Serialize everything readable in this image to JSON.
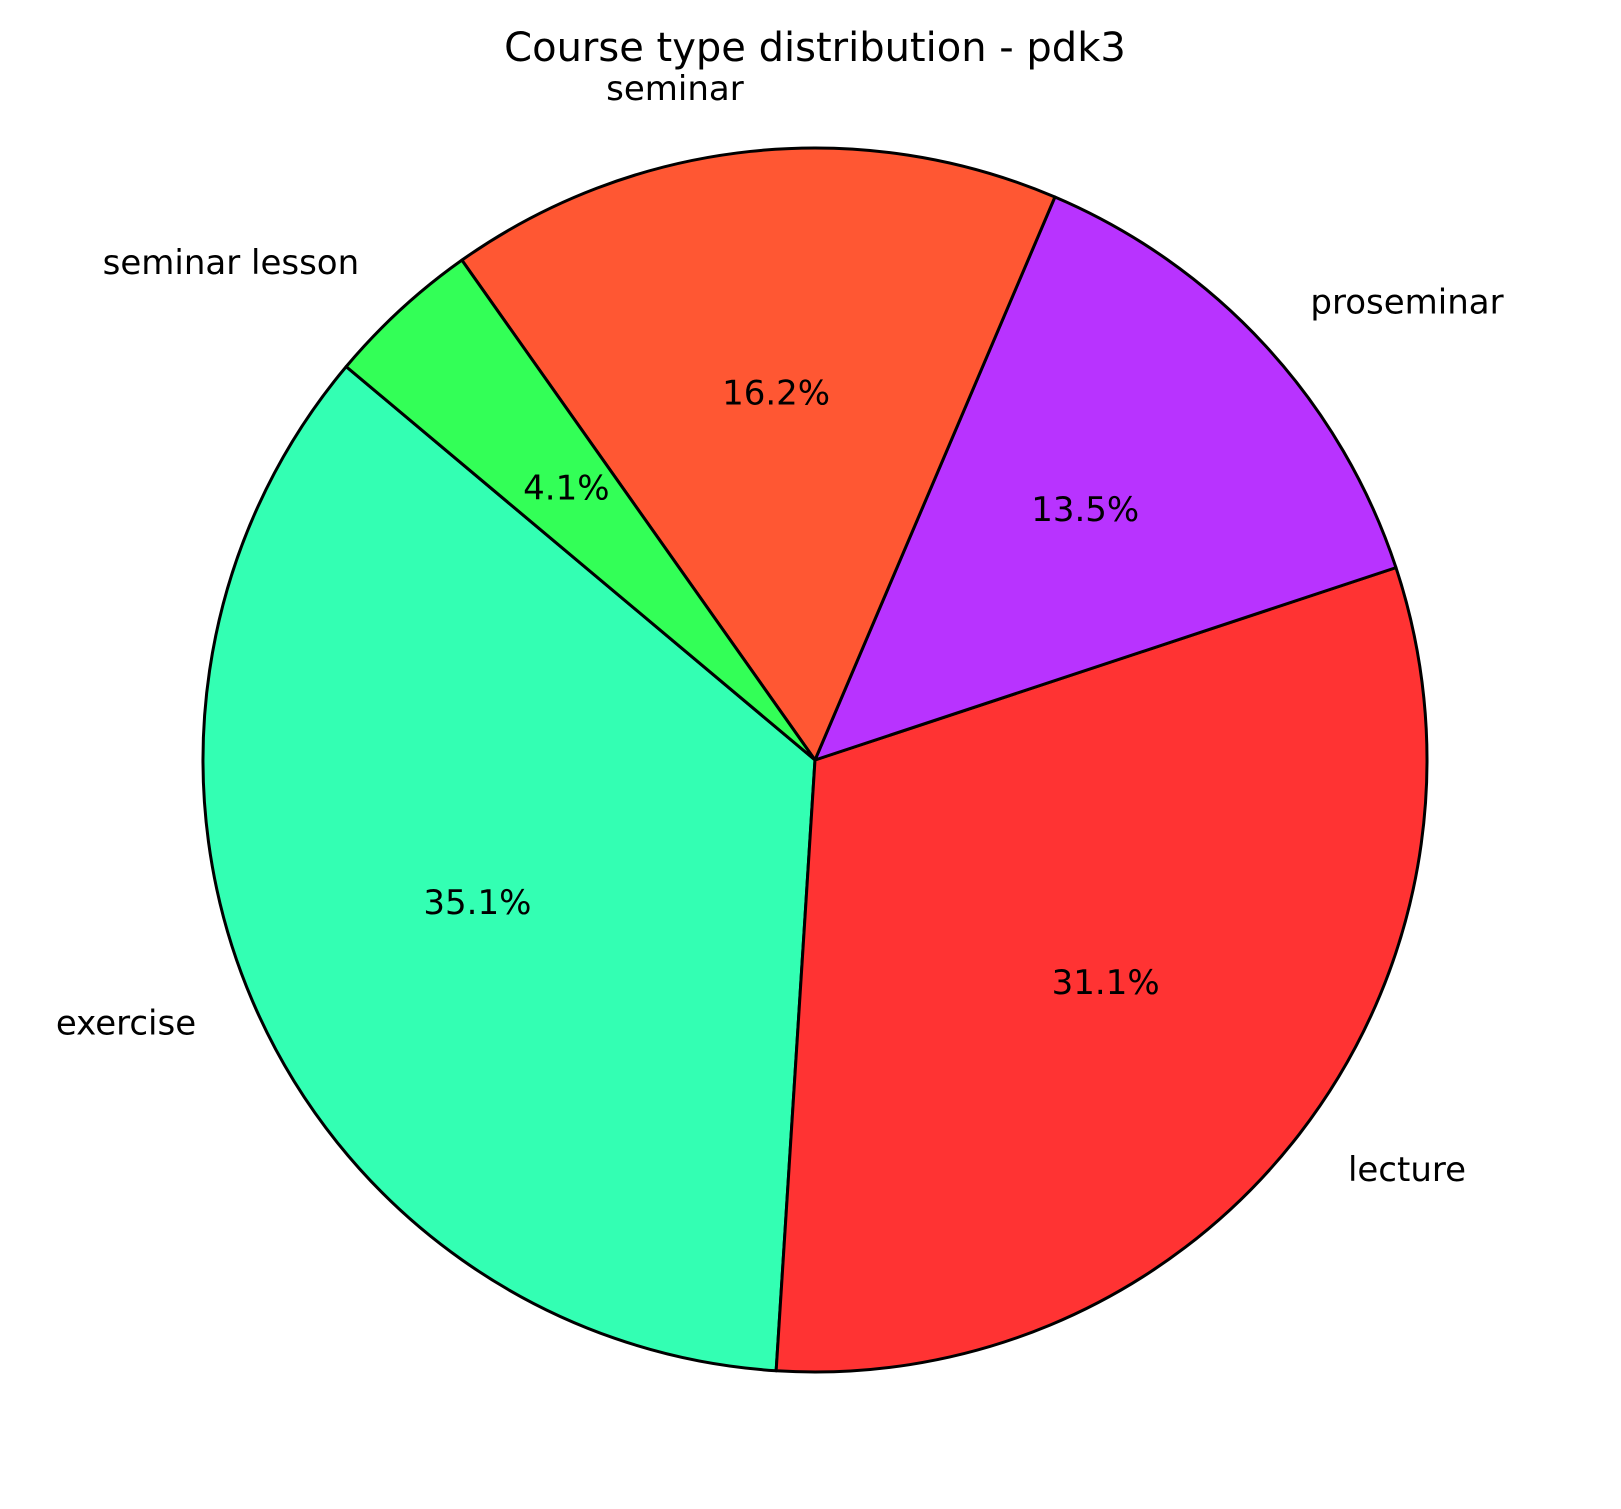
{
  "chart_data": {
    "type": "pie",
    "title": "Course type distribution - pdk3",
    "categories": [
      "exercise",
      "lecture",
      "proseminar",
      "seminar",
      "seminar lesson"
    ],
    "values": [
      35.1,
      31.1,
      13.5,
      16.2,
      4.1
    ],
    "value_labels": [
      "35.1%",
      "31.1%",
      "13.5%",
      "16.2%",
      "4.1%"
    ],
    "colors": [
      "#33ffb3",
      "#ff3333",
      "#b833ff",
      "#ff5733",
      "#33ff57"
    ],
    "startangle": 140
  }
}
